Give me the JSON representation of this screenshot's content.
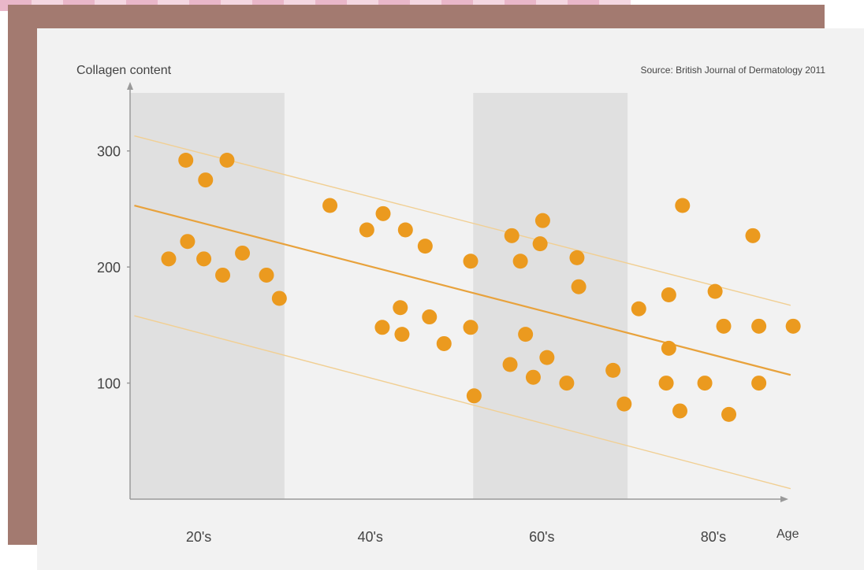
{
  "chart_data": {
    "type": "scatter",
    "ylabel": "Collagen content",
    "xlabel": "Age",
    "source": "Source: British Journal of Dermatology 2011",
    "y_ticks": [
      100,
      200,
      300
    ],
    "ylim": [
      0,
      350
    ],
    "xlim": [
      17,
      93
    ],
    "x_ticks": [
      {
        "value": 25,
        "label": "20's"
      },
      {
        "value": 45,
        "label": "40's"
      },
      {
        "value": 65,
        "label": "60's"
      },
      {
        "value": 85,
        "label": "80's"
      }
    ],
    "shaded_bands": [
      {
        "from": 17,
        "to": 35
      },
      {
        "from": 57,
        "to": 75
      }
    ],
    "trend_line": {
      "x1": 17.5,
      "y1": 253,
      "x2": 94,
      "y2": 107
    },
    "bound_lines": [
      {
        "x1": 17.5,
        "y1": 313,
        "x2": 94,
        "y2": 167
      },
      {
        "x1": 17.5,
        "y1": 158,
        "x2": 94,
        "y2": 9
      }
    ],
    "points": [
      {
        "x": 21.5,
        "y": 207
      },
      {
        "x": 23.5,
        "y": 292
      },
      {
        "x": 23.7,
        "y": 222
      },
      {
        "x": 25.8,
        "y": 275
      },
      {
        "x": 25.6,
        "y": 207
      },
      {
        "x": 27.8,
        "y": 193
      },
      {
        "x": 28.3,
        "y": 292
      },
      {
        "x": 30.1,
        "y": 212
      },
      {
        "x": 32.9,
        "y": 193
      },
      {
        "x": 34.4,
        "y": 173
      },
      {
        "x": 40.3,
        "y": 253
      },
      {
        "x": 44.6,
        "y": 232
      },
      {
        "x": 46.5,
        "y": 246
      },
      {
        "x": 46.4,
        "y": 148
      },
      {
        "x": 48.7,
        "y": 142
      },
      {
        "x": 48.5,
        "y": 165
      },
      {
        "x": 49.1,
        "y": 232
      },
      {
        "x": 51.4,
        "y": 218
      },
      {
        "x": 51.9,
        "y": 157
      },
      {
        "x": 53.6,
        "y": 134
      },
      {
        "x": 56.7,
        "y": 205
      },
      {
        "x": 56.7,
        "y": 148
      },
      {
        "x": 57.1,
        "y": 89
      },
      {
        "x": 61.3,
        "y": 116
      },
      {
        "x": 61.5,
        "y": 227
      },
      {
        "x": 62.5,
        "y": 205
      },
      {
        "x": 63.1,
        "y": 142
      },
      {
        "x": 64.0,
        "y": 105
      },
      {
        "x": 64.8,
        "y": 220
      },
      {
        "x": 65.1,
        "y": 240
      },
      {
        "x": 65.6,
        "y": 122
      },
      {
        "x": 67.9,
        "y": 100
      },
      {
        "x": 69.1,
        "y": 208
      },
      {
        "x": 69.3,
        "y": 183
      },
      {
        "x": 73.3,
        "y": 111
      },
      {
        "x": 74.6,
        "y": 82
      },
      {
        "x": 76.3,
        "y": 164
      },
      {
        "x": 79.5,
        "y": 100
      },
      {
        "x": 79.8,
        "y": 176
      },
      {
        "x": 79.8,
        "y": 130
      },
      {
        "x": 81.1,
        "y": 76
      },
      {
        "x": 81.4,
        "y": 253
      },
      {
        "x": 84.0,
        "y": 100
      },
      {
        "x": 85.2,
        "y": 179
      },
      {
        "x": 86.2,
        "y": 149
      },
      {
        "x": 86.8,
        "y": 73
      },
      {
        "x": 89.6,
        "y": 227
      },
      {
        "x": 90.3,
        "y": 100
      },
      {
        "x": 90.3,
        "y": 149
      },
      {
        "x": 94.3,
        "y": 149
      }
    ]
  },
  "colors": {
    "band": "#e0e0e0",
    "point": "#eb9a1f",
    "trend": "#e8a23c",
    "bound": "#f1cf93",
    "axis": "#9a9a9a",
    "text": "#444444"
  }
}
